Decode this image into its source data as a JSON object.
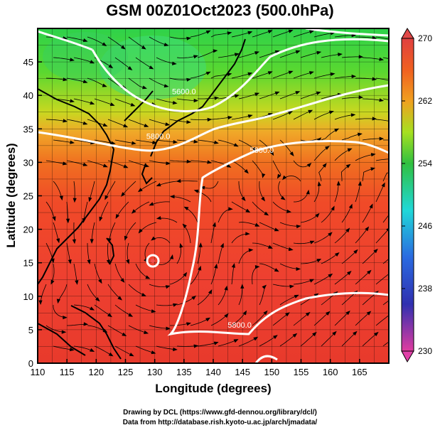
{
  "title": "GSM 00Z01Oct2023 (500.0hPa)",
  "xlabel": "Longitude (degrees)",
  "ylabel": "Latitude  (degrees)",
  "credits": {
    "line1": "Drawing by DCL (https://www.gfd-dennou.org/library/dcl/)",
    "line2": "Data from http://database.rish.kyoto-u.ac.jp/arch/jmadata/"
  },
  "map": {
    "lon_range": [
      110,
      170
    ],
    "lat_range": [
      0,
      50
    ],
    "x_ticks": [
      110,
      115,
      120,
      125,
      130,
      135,
      140,
      145,
      150,
      155,
      160,
      165
    ],
    "y_ticks": [
      0,
      5,
      10,
      15,
      20,
      25,
      30,
      35,
      40,
      45
    ],
    "grid": true
  },
  "colorbar": {
    "ticks": [
      230,
      238,
      246,
      254,
      262,
      270
    ],
    "colors": {
      "230": "#e03ca0",
      "236": "#3030b0",
      "242": "#2a6ae0",
      "248": "#20d8d8",
      "254": "#30c040",
      "258": "#a6e020",
      "262": "#f0a020",
      "266": "#f06020",
      "270": "#e04040"
    }
  },
  "contours": [
    {
      "label": "5600.0",
      "lon": 135,
      "lat": 40.2
    },
    {
      "label": "5800.0",
      "lon": 130.6,
      "lat": 33.5
    },
    {
      "label": "5800.0",
      "lon": 148.3,
      "lat": 31.4
    },
    {
      "label": "5800.0",
      "lon": 144.5,
      "lat": 5.3
    }
  ]
}
